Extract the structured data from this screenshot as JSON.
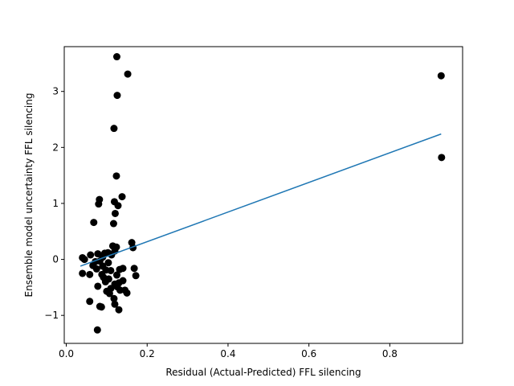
{
  "chart_data": {
    "type": "scatter",
    "title": "",
    "xlabel": "Residual (Actual-Predicted) FFL silencing",
    "ylabel": "Ensemble model uncertainty FFL silencing",
    "xlim": [
      -0.005,
      0.98
    ],
    "ylim": [
      -1.5,
      3.8
    ],
    "xticks": [
      0.0,
      0.2,
      0.4,
      0.6,
      0.8
    ],
    "xtick_labels": [
      "0.0",
      "0.2",
      "0.4",
      "0.6",
      "0.8"
    ],
    "yticks": [
      -1,
      0,
      1,
      2,
      3
    ],
    "ytick_labels": [
      "−1",
      "0",
      "1",
      "2",
      "3"
    ],
    "grid": false,
    "series": [
      {
        "kind": "scatter",
        "color": "#000000",
        "points": [
          [
            0.125,
            3.62
          ],
          [
            0.152,
            3.31
          ],
          [
            0.126,
            2.93
          ],
          [
            0.118,
            2.34
          ],
          [
            0.124,
            1.49
          ],
          [
            0.138,
            1.12
          ],
          [
            0.082,
            1.07
          ],
          [
            0.119,
            1.03
          ],
          [
            0.08,
            0.99
          ],
          [
            0.128,
            0.96
          ],
          [
            0.121,
            0.82
          ],
          [
            0.068,
            0.66
          ],
          [
            0.117,
            0.64
          ],
          [
            0.162,
            0.3
          ],
          [
            0.115,
            0.24
          ],
          [
            0.124,
            0.22
          ],
          [
            0.165,
            0.21
          ],
          [
            0.12,
            0.15
          ],
          [
            0.103,
            0.12
          ],
          [
            0.095,
            0.11
          ],
          [
            0.078,
            0.1
          ],
          [
            0.06,
            0.08
          ],
          [
            0.112,
            0.08
          ],
          [
            0.04,
            0.03
          ],
          [
            0.09,
            0.04
          ],
          [
            0.045,
            0.0
          ],
          [
            0.072,
            -0.04
          ],
          [
            0.083,
            -0.03
          ],
          [
            0.104,
            -0.06
          ],
          [
            0.066,
            -0.11
          ],
          [
            0.09,
            -0.12
          ],
          [
            0.14,
            -0.16
          ],
          [
            0.132,
            -0.18
          ],
          [
            0.168,
            -0.16
          ],
          [
            0.075,
            -0.17
          ],
          [
            0.098,
            -0.19
          ],
          [
            0.11,
            -0.2
          ],
          [
            0.04,
            -0.25
          ],
          [
            0.058,
            -0.27
          ],
          [
            0.088,
            -0.27
          ],
          [
            0.125,
            -0.28
          ],
          [
            0.172,
            -0.29
          ],
          [
            0.092,
            -0.32
          ],
          [
            0.105,
            -0.35
          ],
          [
            0.14,
            -0.38
          ],
          [
            0.097,
            -0.4
          ],
          [
            0.13,
            -0.42
          ],
          [
            0.12,
            -0.44
          ],
          [
            0.078,
            -0.48
          ],
          [
            0.126,
            -0.49
          ],
          [
            0.11,
            -0.52
          ],
          [
            0.145,
            -0.55
          ],
          [
            0.133,
            -0.55
          ],
          [
            0.1,
            -0.57
          ],
          [
            0.15,
            -0.6
          ],
          [
            0.107,
            -0.61
          ],
          [
            0.118,
            -0.7
          ],
          [
            0.058,
            -0.75
          ],
          [
            0.12,
            -0.8
          ],
          [
            0.083,
            -0.84
          ],
          [
            0.087,
            -0.85
          ],
          [
            0.13,
            -0.9
          ],
          [
            0.077,
            -1.26
          ],
          [
            0.927,
            3.28
          ],
          [
            0.928,
            1.82
          ]
        ]
      },
      {
        "kind": "line",
        "color": "#1f77b4",
        "points": [
          [
            0.035,
            -0.12
          ],
          [
            0.927,
            2.24
          ]
        ]
      }
    ]
  }
}
